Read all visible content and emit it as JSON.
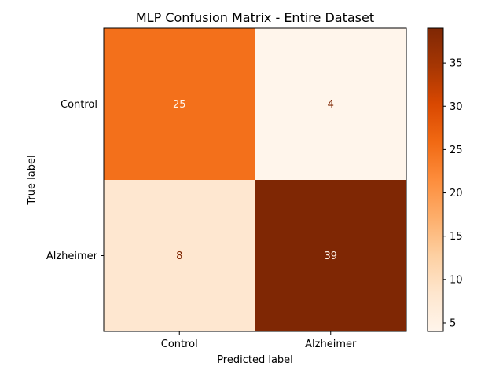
{
  "chart_data": {
    "type": "heatmap",
    "title": "MLP Confusion Matrix - Entire Dataset",
    "xlabel": "Predicted label",
    "ylabel": "True label",
    "x_categories": [
      "Control",
      "Alzheimer"
    ],
    "y_categories": [
      "Control",
      "Alzheimer"
    ],
    "values": [
      [
        25,
        4
      ],
      [
        8,
        39
      ]
    ],
    "colormap": "Oranges",
    "colorbar": {
      "vmin": 4,
      "vmax": 39,
      "ticks": [
        5,
        10,
        15,
        20,
        25,
        30,
        35
      ],
      "position": "right"
    },
    "colors": {
      "light_text": "#fff5eb",
      "dark_text": "#7f2704"
    }
  }
}
